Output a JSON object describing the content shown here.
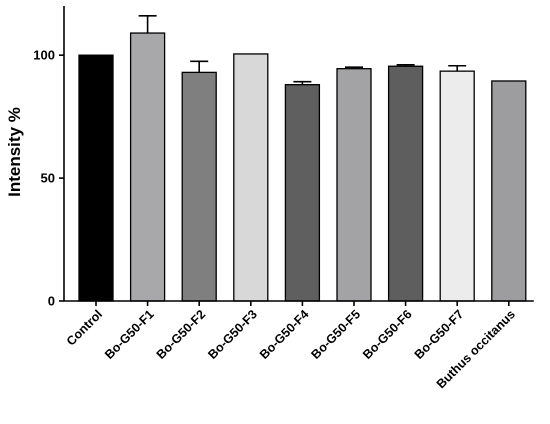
{
  "chart_data": {
    "type": "bar",
    "title": "",
    "xlabel": "",
    "ylabel": "Intensity %",
    "ylim": [
      0,
      120
    ],
    "yticks": [
      0,
      50,
      100
    ],
    "categories": [
      "Control",
      "Bo-G50-F1",
      "Bo-G50-F2",
      "Bo-G50-F3",
      "Bo-G50-F4",
      "Bo-G50-F5",
      "Bo-G50-F6",
      "Bo-G50-F7",
      "Buthus occitanus"
    ],
    "values": [
      100,
      109,
      93,
      100.5,
      88,
      94.5,
      95.5,
      93.5,
      89.5
    ],
    "errors": [
      0,
      7,
      4.5,
      0,
      1.2,
      0.6,
      0.6,
      2.2,
      0
    ],
    "colors": [
      "#000000",
      "#a8a8ab",
      "#7f7f7f",
      "#d8d8d8",
      "#5f5f5f",
      "#a3a3a5",
      "#5e5e5e",
      "#ececec",
      "#9d9d9f"
    ],
    "grid": false,
    "legend": "none"
  }
}
